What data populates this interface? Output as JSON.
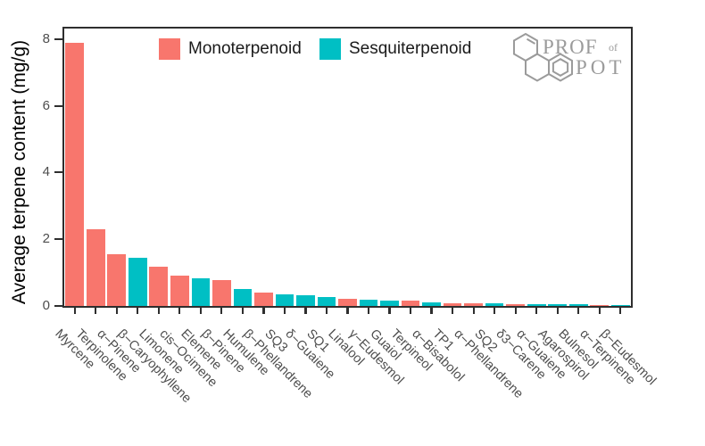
{
  "chart_data": {
    "type": "bar",
    "title": "",
    "xlabel": "",
    "ylabel": "Average terpene content (mg/g)",
    "ylim": [
      0,
      8.35
    ],
    "yticks": [
      0,
      2,
      4,
      6,
      8
    ],
    "grid": false,
    "legend_position": "top-inside",
    "categories": [
      "Myrcene",
      "Terpinolene",
      "α−Pinene",
      "β−Caryophyllene",
      "Limonene",
      "cis−Ocimene",
      "Elemene",
      "β−Pinene",
      "Humulene",
      "β−Phellandrene",
      "SQ3",
      "δ−Guaiene",
      "SQ1",
      "Linalool",
      "γ−Eudesmol",
      "Guaiol",
      "Terpineol",
      "α−Bisabolol",
      "TP1",
      "α−Phellandrene",
      "SQ2",
      "δ3−Carene",
      "α−Guaiene",
      "Agarospirol",
      "Bulnesol",
      "α−Terpinene",
      "β−Eudesmol"
    ],
    "values": [
      7.9,
      2.3,
      1.56,
      1.45,
      1.18,
      0.91,
      0.83,
      0.77,
      0.51,
      0.41,
      0.34,
      0.32,
      0.28,
      0.21,
      0.18,
      0.16,
      0.15,
      0.11,
      0.09,
      0.07,
      0.07,
      0.06,
      0.05,
      0.05,
      0.05,
      0.04,
      0.03
    ],
    "groups": [
      "Monoterpenoid",
      "Monoterpenoid",
      "Monoterpenoid",
      "Sesquiterpenoid",
      "Monoterpenoid",
      "Monoterpenoid",
      "Sesquiterpenoid",
      "Monoterpenoid",
      "Sesquiterpenoid",
      "Monoterpenoid",
      "Sesquiterpenoid",
      "Sesquiterpenoid",
      "Sesquiterpenoid",
      "Monoterpenoid",
      "Sesquiterpenoid",
      "Sesquiterpenoid",
      "Monoterpenoid",
      "Sesquiterpenoid",
      "Monoterpenoid",
      "Monoterpenoid",
      "Sesquiterpenoid",
      "Monoterpenoid",
      "Sesquiterpenoid",
      "Sesquiterpenoid",
      "Sesquiterpenoid",
      "Monoterpenoid",
      "Sesquiterpenoid"
    ],
    "series_colors": {
      "Monoterpenoid": "#F8766D",
      "Sesquiterpenoid": "#00BFC4"
    },
    "legend": [
      {
        "label": "Monoterpenoid",
        "color": "#F8766D"
      },
      {
        "label": "Sesquiterpenoid",
        "color": "#00BFC4"
      }
    ]
  },
  "axis": {
    "text_color": "#4d4d4d",
    "line_color": "#2e2e2e"
  },
  "logo": {
    "prof": "PROF",
    "of": "of",
    "pot": "POT",
    "color": "#9b9b9b"
  }
}
